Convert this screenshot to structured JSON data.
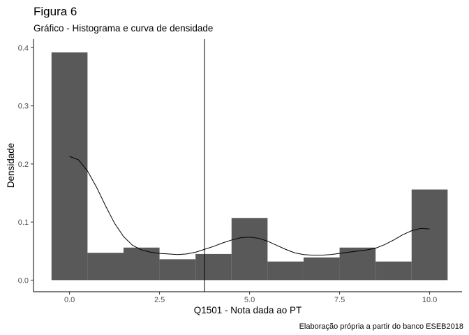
{
  "chart_data": {
    "type": "bar",
    "title": "Figura 6",
    "subtitle": "Gráfico - Histograma e curva de densidade",
    "xlabel": "Q1501 - Nota dada ao PT",
    "ylabel": "Densidade",
    "caption": "Elaboração própria a partir do banco ESEB2018",
    "xlim": [
      -1.0,
      10.9
    ],
    "ylim": [
      -0.02,
      0.415
    ],
    "x_ticks": [
      0.0,
      2.5,
      5.0,
      7.5,
      10.0
    ],
    "x_tick_labels": [
      "0.0",
      "2.5",
      "5.0",
      "7.5",
      "10.0"
    ],
    "y_ticks": [
      0.0,
      0.1,
      0.2,
      0.3,
      0.4
    ],
    "y_tick_labels": [
      "0.0",
      "0.1",
      "0.2",
      "0.3",
      "0.4"
    ],
    "grid": false,
    "bar_color": "#595959",
    "histogram": {
      "bins": [
        {
          "x0": -0.5,
          "x1": 0.5,
          "density": 0.392
        },
        {
          "x0": 0.5,
          "x1": 1.5,
          "density": 0.047
        },
        {
          "x0": 1.5,
          "x1": 2.5,
          "density": 0.056
        },
        {
          "x0": 2.5,
          "x1": 3.5,
          "density": 0.036
        },
        {
          "x0": 3.5,
          "x1": 4.5,
          "density": 0.045
        },
        {
          "x0": 4.5,
          "x1": 5.5,
          "density": 0.107
        },
        {
          "x0": 5.5,
          "x1": 6.5,
          "density": 0.032
        },
        {
          "x0": 6.5,
          "x1": 7.5,
          "density": 0.039
        },
        {
          "x0": 7.5,
          "x1": 8.5,
          "density": 0.056
        },
        {
          "x0": 8.5,
          "x1": 9.5,
          "density": 0.032
        },
        {
          "x0": 9.5,
          "x1": 10.5,
          "density": 0.156
        }
      ]
    },
    "density_curve": {
      "x": [
        0.0,
        0.25,
        0.5,
        0.75,
        1.0,
        1.25,
        1.5,
        1.75,
        2.0,
        2.25,
        2.5,
        2.75,
        3.0,
        3.25,
        3.5,
        3.75,
        4.0,
        4.25,
        4.5,
        4.75,
        5.0,
        5.25,
        5.5,
        5.75,
        6.0,
        6.25,
        6.5,
        6.75,
        7.0,
        7.25,
        7.5,
        7.75,
        8.0,
        8.25,
        8.5,
        8.75,
        9.0,
        9.25,
        9.5,
        9.75,
        10.0
      ],
      "y": [
        0.213,
        0.207,
        0.188,
        0.16,
        0.128,
        0.098,
        0.075,
        0.06,
        0.052,
        0.048,
        0.046,
        0.045,
        0.044,
        0.045,
        0.048,
        0.053,
        0.058,
        0.064,
        0.069,
        0.073,
        0.074,
        0.072,
        0.067,
        0.06,
        0.053,
        0.047,
        0.044,
        0.043,
        0.043,
        0.044,
        0.046,
        0.048,
        0.05,
        0.052,
        0.055,
        0.061,
        0.069,
        0.078,
        0.085,
        0.089,
        0.088
      ]
    },
    "vline": {
      "x": 3.75
    }
  }
}
